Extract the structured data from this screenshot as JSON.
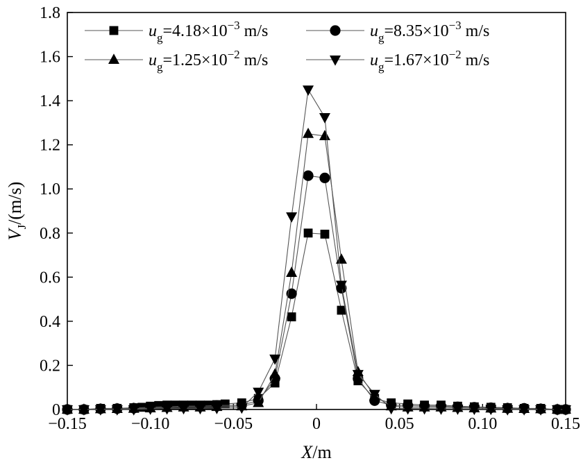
{
  "chart_data": {
    "type": "line",
    "title": "",
    "xlabel": {
      "main": "X",
      "unit": "/m"
    },
    "ylabel": {
      "main": "V",
      "sub": "J",
      "unit": "/(m/s)"
    },
    "xlim": [
      -0.15,
      0.15
    ],
    "ylim": [
      0,
      1.8
    ],
    "xticks": [
      -0.15,
      -0.1,
      -0.05,
      0,
      0.05,
      0.1,
      0.15
    ],
    "xtick_labels": [
      "−0.15",
      "−0.10",
      "−0.05",
      "0",
      "0.05",
      "0.10",
      "0.15"
    ],
    "yticks": [
      0,
      0.2,
      0.4,
      0.6,
      0.8,
      1.0,
      1.2,
      1.4,
      1.6,
      1.8
    ],
    "ytick_labels": [
      "0",
      "0.2",
      "0.4",
      "0.6",
      "0.8",
      "1.0",
      "1.2",
      "1.4",
      "1.6",
      "1.8"
    ],
    "grid": false,
    "legend_position": "top",
    "series": [
      {
        "label": {
          "var": "u",
          "sub": "g",
          "value": "=4.18×10",
          "exp": "−3",
          "unit": " m/s"
        },
        "marker": "square",
        "x": [
          -0.15,
          -0.14,
          -0.13,
          -0.12,
          -0.11,
          -0.105,
          -0.1,
          -0.095,
          -0.09,
          -0.085,
          -0.08,
          -0.075,
          -0.07,
          -0.065,
          -0.06,
          -0.055,
          -0.045,
          -0.035,
          -0.025,
          -0.015,
          -0.005,
          0.005,
          0.015,
          0.025,
          0.035,
          0.045,
          0.055,
          0.065,
          0.075,
          0.085,
          0.095,
          0.105,
          0.115,
          0.125,
          0.135,
          0.145,
          0.15
        ],
        "y": [
          0.0,
          0.0,
          0.005,
          0.005,
          0.008,
          0.01,
          0.015,
          0.018,
          0.02,
          0.02,
          0.02,
          0.02,
          0.02,
          0.02,
          0.022,
          0.025,
          0.03,
          0.05,
          0.12,
          0.42,
          0.8,
          0.795,
          0.45,
          0.13,
          0.05,
          0.03,
          0.025,
          0.02,
          0.02,
          0.015,
          0.012,
          0.01,
          0.008,
          0.005,
          0.005,
          0.0,
          0.0
        ]
      },
      {
        "label": {
          "var": "u",
          "sub": "g",
          "value": "=8.35×10",
          "exp": "−3",
          "unit": " m/s"
        },
        "marker": "circle",
        "x": [
          -0.15,
          -0.14,
          -0.13,
          -0.12,
          -0.11,
          -0.1,
          -0.09,
          -0.08,
          -0.07,
          -0.06,
          -0.045,
          -0.035,
          -0.025,
          -0.015,
          -0.005,
          0.005,
          0.015,
          0.025,
          0.035,
          0.045,
          0.055,
          0.065,
          0.075,
          0.085,
          0.095,
          0.105,
          0.115,
          0.125,
          0.135,
          0.145,
          0.15
        ],
        "y": [
          0.0,
          0.0,
          0.003,
          0.004,
          0.006,
          0.01,
          0.012,
          0.015,
          0.015,
          0.018,
          0.02,
          0.04,
          0.14,
          0.525,
          1.06,
          1.05,
          0.55,
          0.14,
          0.04,
          0.02,
          0.018,
          0.015,
          0.015,
          0.012,
          0.01,
          0.008,
          0.006,
          0.005,
          0.003,
          0.0,
          0.0
        ]
      },
      {
        "label": {
          "var": "u",
          "sub": "g",
          "value": "=1.25×10",
          "exp": "−2",
          "unit": " m/s"
        },
        "marker": "triangle-up",
        "x": [
          -0.15,
          -0.14,
          -0.13,
          -0.12,
          -0.11,
          -0.1,
          -0.09,
          -0.08,
          -0.07,
          -0.06,
          -0.045,
          -0.035,
          -0.025,
          -0.015,
          -0.005,
          0.005,
          0.015,
          0.025,
          0.035,
          0.045,
          0.055,
          0.065,
          0.075,
          0.085,
          0.095,
          0.105,
          0.115,
          0.125,
          0.135,
          0.145,
          0.15
        ],
        "y": [
          0.0,
          0.0,
          0.002,
          0.003,
          0.004,
          0.006,
          0.008,
          0.01,
          0.01,
          0.012,
          0.015,
          0.03,
          0.16,
          0.62,
          1.25,
          1.24,
          0.68,
          0.17,
          0.06,
          0.015,
          0.01,
          0.01,
          0.01,
          0.008,
          0.006,
          0.005,
          0.004,
          0.003,
          0.002,
          0.0,
          0.0
        ]
      },
      {
        "label": {
          "var": "u",
          "sub": "g",
          "value": "=1.67×10",
          "exp": "−2",
          "unit": " m/s"
        },
        "marker": "triangle-down",
        "x": [
          -0.15,
          -0.14,
          -0.13,
          -0.12,
          -0.11,
          -0.1,
          -0.09,
          -0.08,
          -0.07,
          -0.06,
          -0.045,
          -0.035,
          -0.025,
          -0.015,
          -0.005,
          0.005,
          0.015,
          0.025,
          0.035,
          0.045,
          0.055,
          0.065,
          0.075,
          0.085,
          0.095,
          0.105,
          0.115,
          0.125,
          0.135,
          0.145,
          0.15
        ],
        "y": [
          0.0,
          0.0,
          0.0,
          0.0,
          0.0,
          0.003,
          0.004,
          0.005,
          0.005,
          0.006,
          0.008,
          0.08,
          0.23,
          0.875,
          1.45,
          1.325,
          0.565,
          0.16,
          0.07,
          0.005,
          0.004,
          0.004,
          0.003,
          0.003,
          0.002,
          0.002,
          0.0,
          0.0,
          0.0,
          0.0,
          0.0
        ]
      }
    ]
  }
}
